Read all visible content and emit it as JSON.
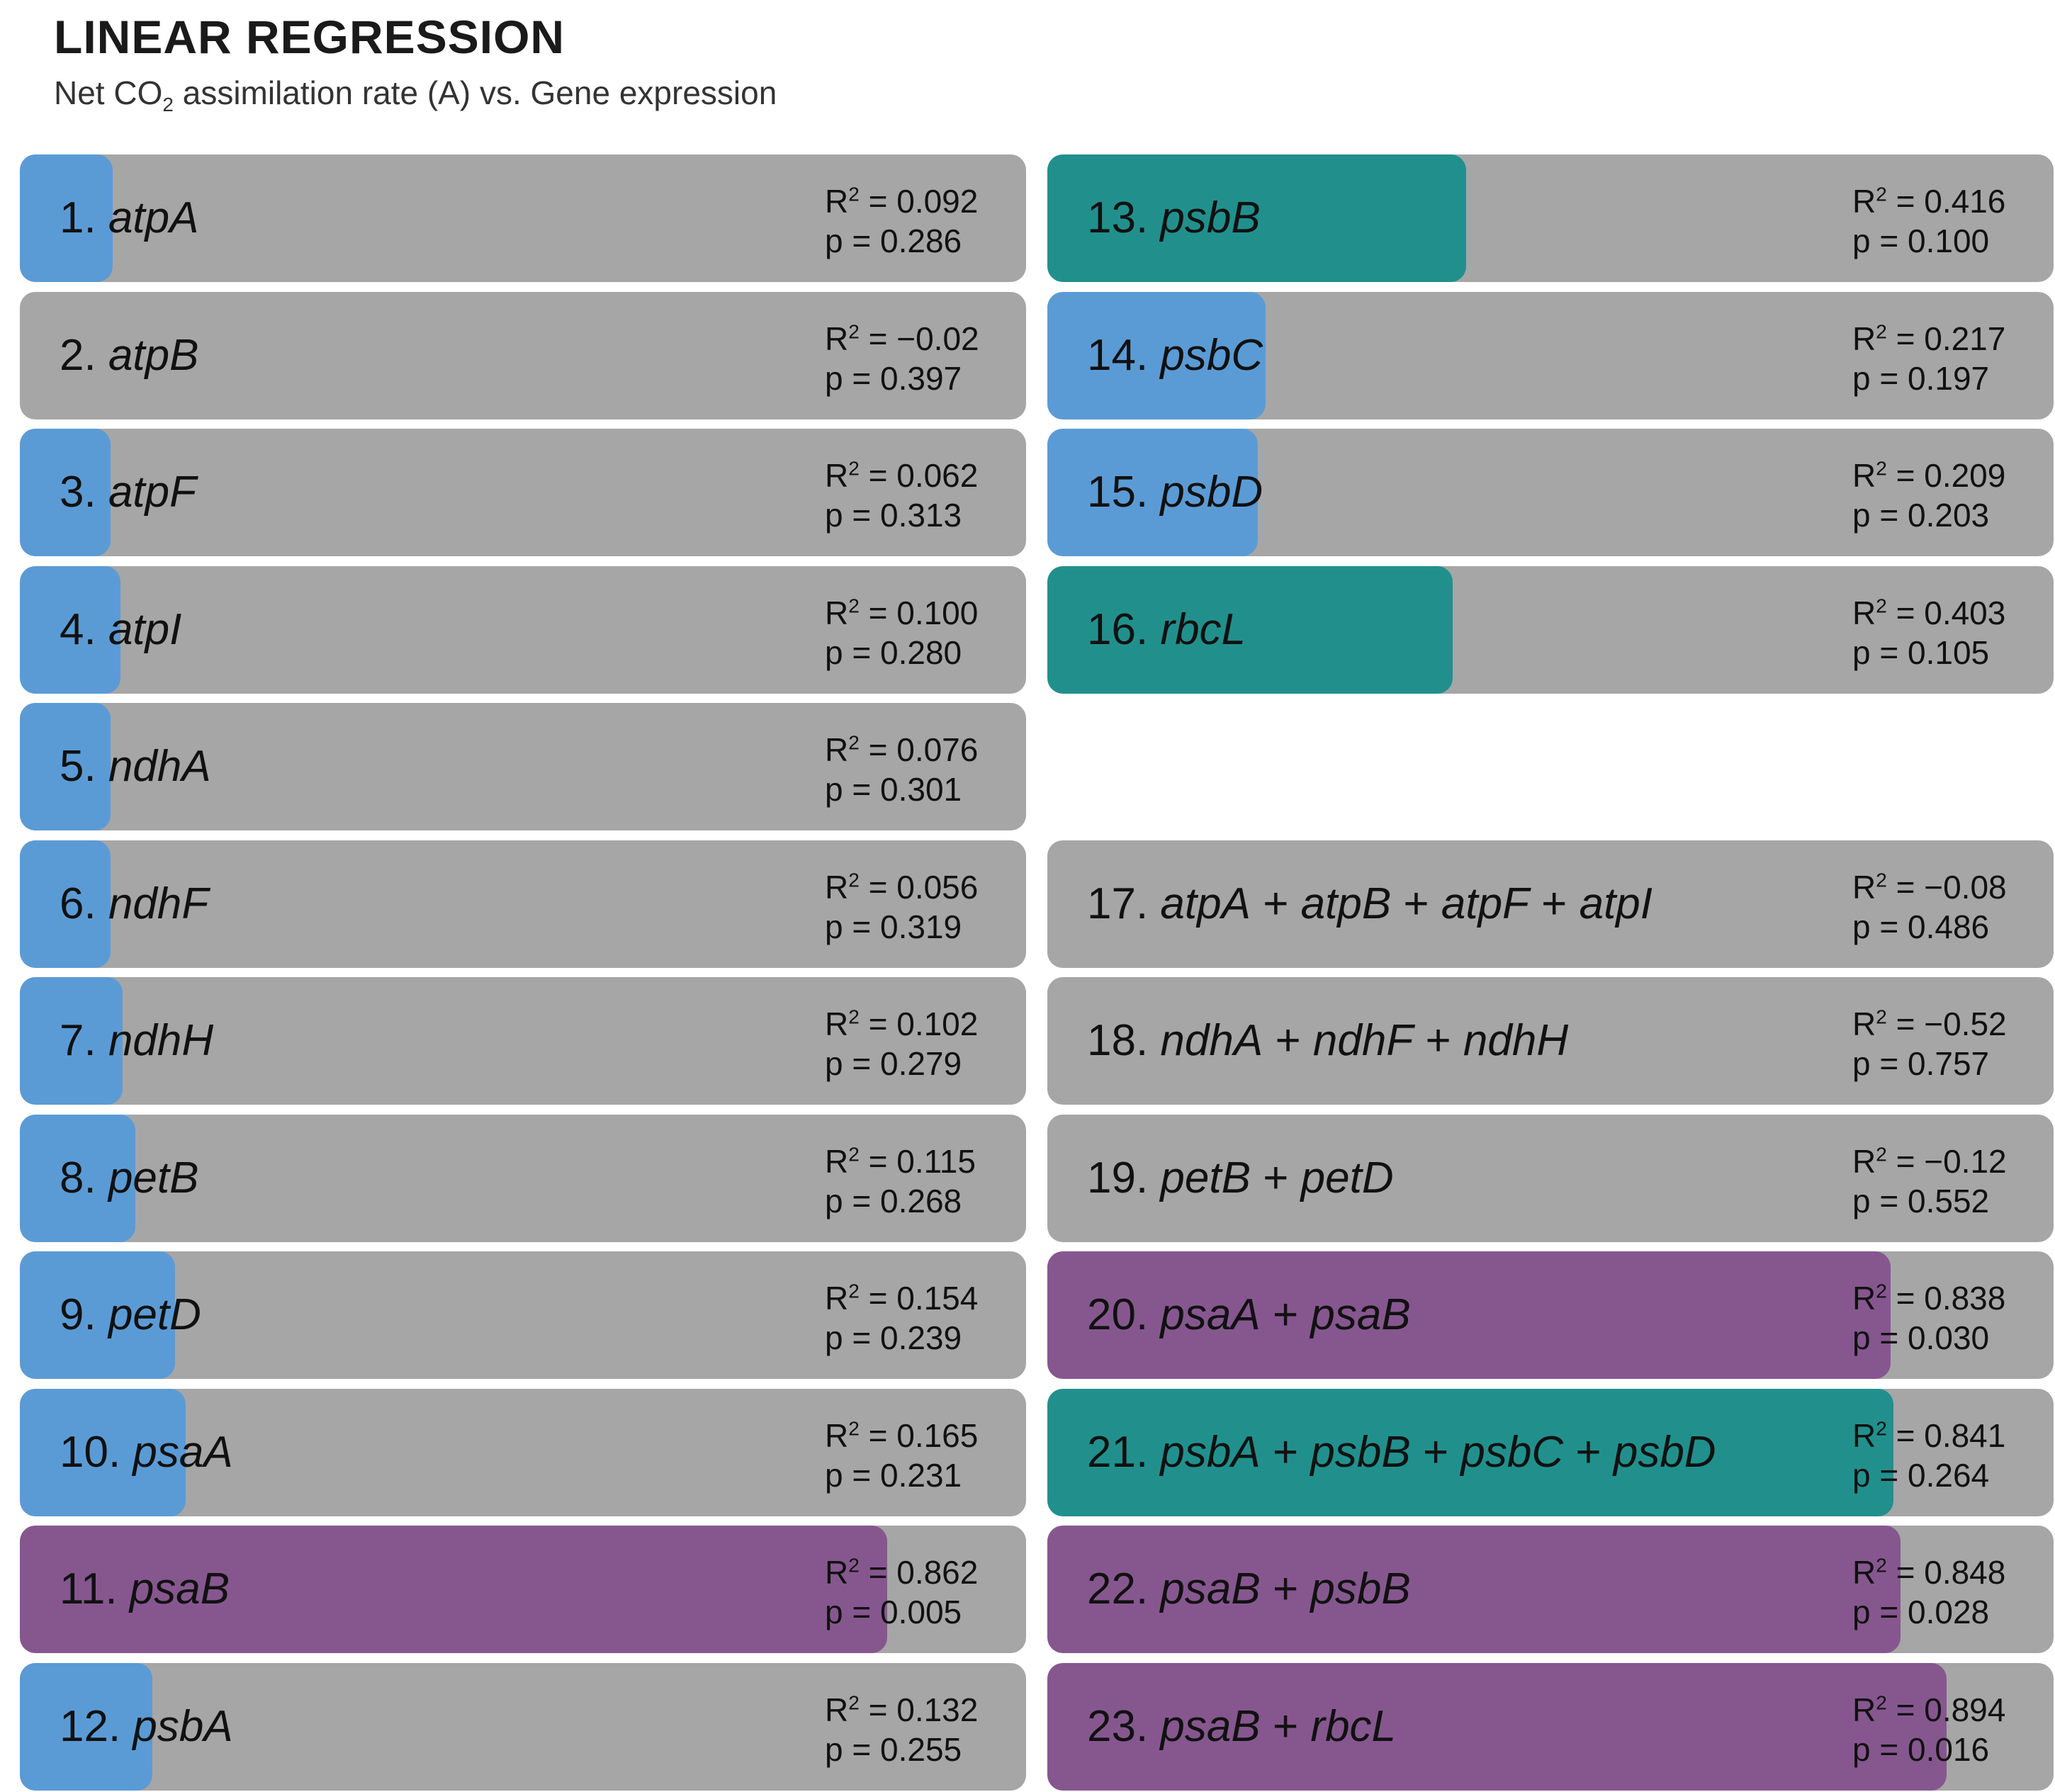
{
  "title": "LINEAR REGRESSION",
  "subtitle_pre": "Net CO",
  "subtitle_sub": "2",
  "subtitle_post": " assimilation rate (A) vs. Gene expression",
  "colors": {
    "track": "#a6a6a6",
    "blue": "#5b9bd5",
    "teal": "#21908d",
    "purple": "#86578f"
  },
  "chart_data": {
    "type": "bar",
    "orientation": "horizontal",
    "xlim": [
      0,
      1
    ],
    "items": [
      {
        "num": "1.",
        "genes": [
          "atpA"
        ],
        "r2": "0.092",
        "p": "0.286",
        "value": 0.092,
        "color": "blue"
      },
      {
        "num": "2.",
        "genes": [
          "atpB"
        ],
        "r2": "−0.02",
        "p": "0.397",
        "value": -0.02,
        "color": "blue"
      },
      {
        "num": "3.",
        "genes": [
          "atpF"
        ],
        "r2": "0.062",
        "p": "0.313",
        "value": 0.062,
        "color": "blue"
      },
      {
        "num": "4.",
        "genes": [
          "atpI"
        ],
        "r2": "0.100",
        "p": "0.280",
        "value": 0.1,
        "color": "blue"
      },
      {
        "num": "5.",
        "genes": [
          "ndhA"
        ],
        "r2": "0.076",
        "p": "0.301",
        "value": 0.076,
        "color": "blue"
      },
      {
        "num": "6.",
        "genes": [
          "ndhF"
        ],
        "r2": "0.056",
        "p": "0.319",
        "value": 0.056,
        "color": "blue"
      },
      {
        "num": "7.",
        "genes": [
          "ndhH"
        ],
        "r2": "0.102",
        "p": "0.279",
        "value": 0.102,
        "color": "blue"
      },
      {
        "num": "8.",
        "genes": [
          "petB"
        ],
        "r2": "0.115",
        "p": "0.268",
        "value": 0.115,
        "color": "blue"
      },
      {
        "num": "9.",
        "genes": [
          "petD"
        ],
        "r2": "0.154",
        "p": "0.239",
        "value": 0.154,
        "color": "blue"
      },
      {
        "num": "10.",
        "genes": [
          "psaA"
        ],
        "r2": "0.165",
        "p": "0.231",
        "value": 0.165,
        "color": "blue"
      },
      {
        "num": "11.",
        "genes": [
          "psaB"
        ],
        "r2": "0.862",
        "p": "0.005",
        "value": 0.862,
        "color": "purple"
      },
      {
        "num": "12.",
        "genes": [
          "psbA"
        ],
        "r2": "0.132",
        "p": "0.255",
        "value": 0.132,
        "color": "blue"
      },
      {
        "num": "13.",
        "genes": [
          "psbB"
        ],
        "r2": "0.416",
        "p": "0.100",
        "value": 0.416,
        "color": "teal"
      },
      {
        "num": "14.",
        "genes": [
          "psbC"
        ],
        "r2": "0.217",
        "p": "0.197",
        "value": 0.217,
        "color": "blue"
      },
      {
        "num": "15.",
        "genes": [
          "psbD"
        ],
        "r2": "0.209",
        "p": "0.203",
        "value": 0.209,
        "color": "blue"
      },
      {
        "num": "16.",
        "genes": [
          "rbcL"
        ],
        "r2": "0.403",
        "p": "0.105",
        "value": 0.403,
        "color": "teal"
      },
      {
        "num": "17.",
        "genes": [
          "atpA",
          "atpB",
          "atpF",
          "atpI"
        ],
        "r2": "−0.08",
        "p": "0.486",
        "value": -0.08,
        "color": "blue"
      },
      {
        "num": "18.",
        "genes": [
          "ndhA",
          "ndhF",
          "ndhH"
        ],
        "r2": "−0.52",
        "p": "0.757",
        "value": -0.52,
        "color": "blue"
      },
      {
        "num": "19.",
        "genes": [
          "petB",
          "petD"
        ],
        "r2": "−0.12",
        "p": "0.552",
        "value": -0.12,
        "color": "blue"
      },
      {
        "num": "20.",
        "genes": [
          "psaA",
          "psaB"
        ],
        "r2": "0.838",
        "p": "0.030",
        "value": 0.838,
        "color": "purple"
      },
      {
        "num": "21.",
        "genes": [
          "psbA",
          "psbB",
          "psbC",
          "psbD"
        ],
        "r2": "0.841",
        "p": "0.264",
        "value": 0.841,
        "color": "teal"
      },
      {
        "num": "22.",
        "genes": [
          "psaB",
          "psbB"
        ],
        "r2": "0.848",
        "p": "0.028",
        "value": 0.848,
        "color": "purple"
      },
      {
        "num": "23.",
        "genes": [
          "psaB",
          "rbcL"
        ],
        "r2": "0.894",
        "p": "0.016",
        "value": 0.894,
        "color": "purple"
      }
    ]
  }
}
